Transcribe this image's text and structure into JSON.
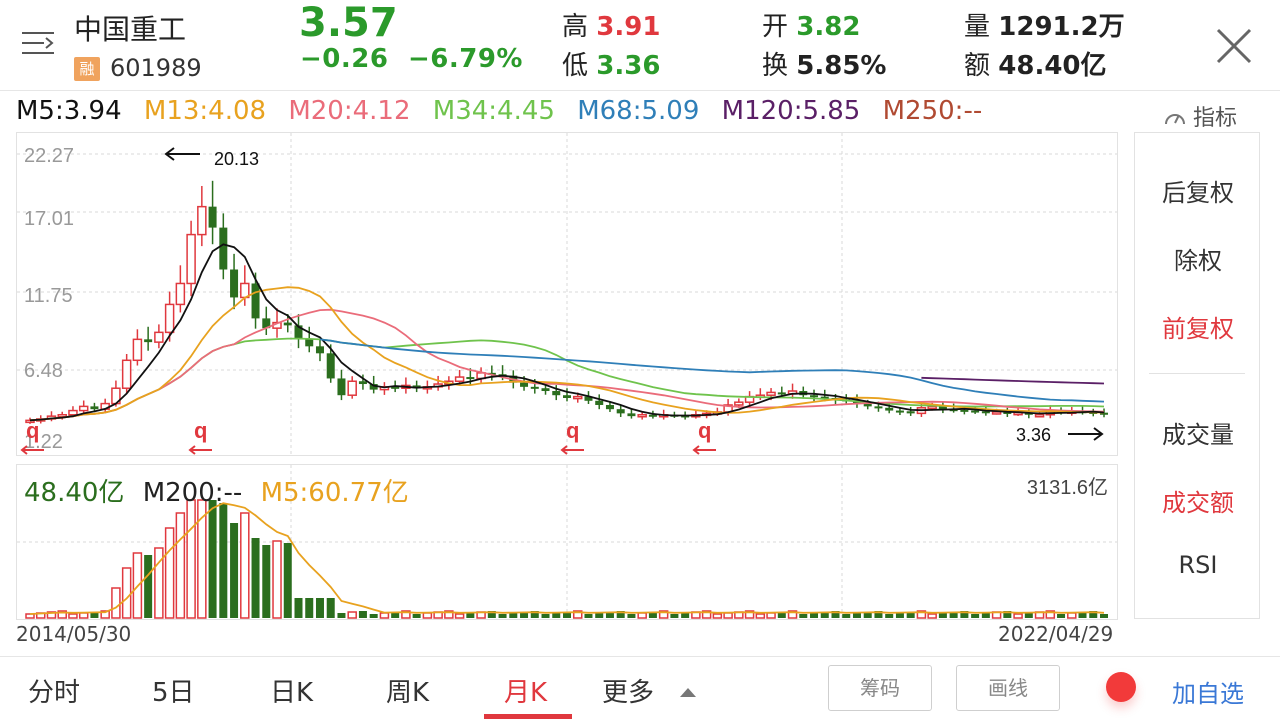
{
  "header": {
    "name": "中国重工",
    "badge": "融",
    "code": "601989",
    "price": "3.57",
    "change": "−0.26",
    "change_pct": "−6.79%",
    "high_label": "高",
    "high": "3.91",
    "low_label": "低",
    "low": "3.36",
    "open_label": "开",
    "open": "3.82",
    "turnover_label": "换",
    "turnover": "5.85%",
    "volume_label": "量",
    "volume": "1291.2万",
    "amount_label": "额",
    "amount": "48.40亿"
  },
  "ma": {
    "m5": "M5:3.94",
    "m13": "M13:4.08",
    "m20": "M20:4.12",
    "m34": "M34:4.45",
    "m68": "M68:5.09",
    "m120": "M120:5.85",
    "m250": "M250:--",
    "indicator": "指标"
  },
  "colors": {
    "up": "#e0383e",
    "down": "#2b6e1e",
    "m5": "#111111",
    "m13": "#e8a21f",
    "m20": "#ea6c7a",
    "m34": "#6fc34c",
    "m68": "#2f7fb8",
    "m120": "#5a1f66",
    "m250": "#b04a32"
  },
  "price_chart": {
    "y_labels": [
      "22.27",
      "17.01",
      "11.75",
      "6.48",
      "1.22"
    ],
    "max_label": "20.13",
    "min_label": "3.36",
    "markers": [
      "q",
      "q",
      "q",
      "q"
    ]
  },
  "volume_chart": {
    "amount": "48.40亿",
    "m200": "M200:--",
    "m5": "M5:60.77亿",
    "max": "3131.6亿"
  },
  "dates": {
    "start": "2014/05/30",
    "end": "2022/04/29"
  },
  "side_menu": {
    "items": [
      "后复权",
      "除权",
      "前复权",
      "成交量",
      "成交额",
      "RSI"
    ]
  },
  "tabs": [
    "分时",
    "5日",
    "日K",
    "周K",
    "月K",
    "更多"
  ],
  "tools": {
    "chip": "筹码",
    "draw": "画线",
    "add_fav": "加自选"
  }
}
